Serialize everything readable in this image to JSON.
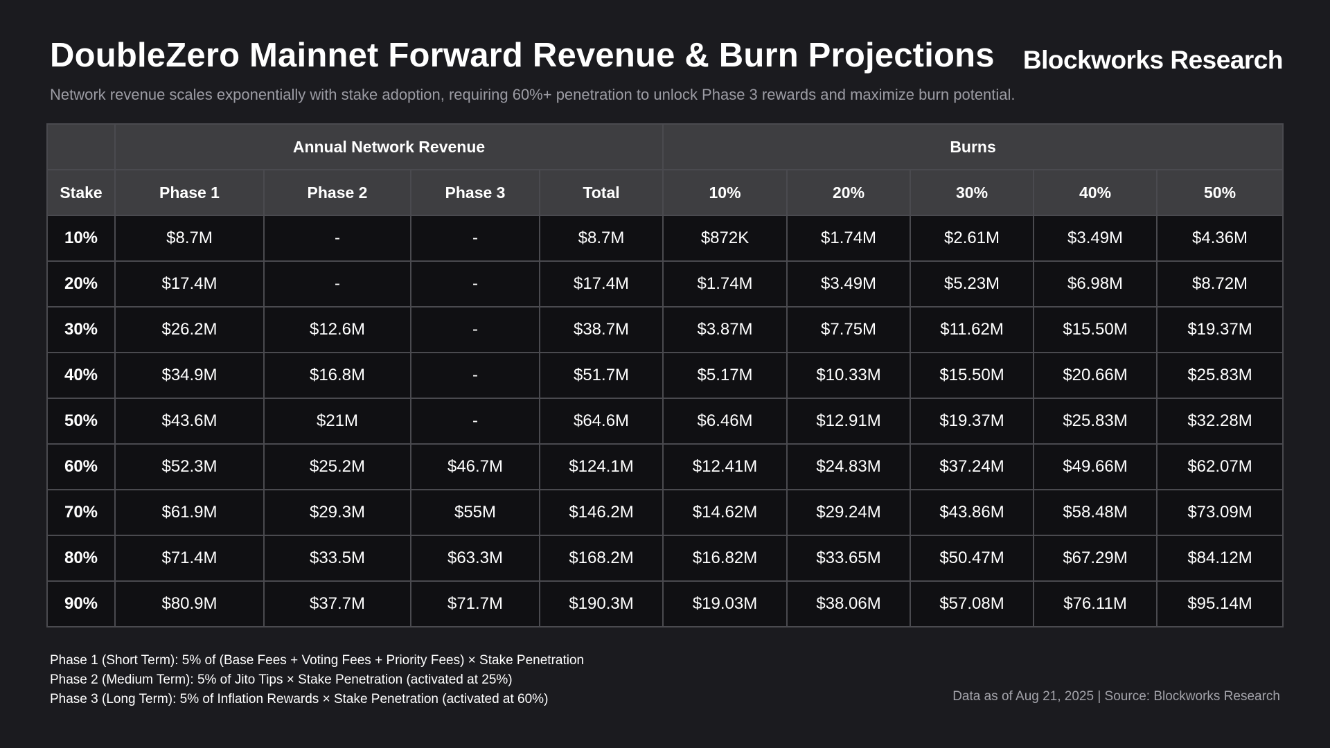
{
  "header": {
    "title": "DoubleZero Mainnet Forward Revenue & Burn Projections",
    "brand": "Blockworks Research",
    "subtitle": "Network revenue scales exponentially with stake adoption, requiring 60%+ penetration to unlock Phase 3 rewards and maximize burn potential."
  },
  "chart_data": {
    "type": "table",
    "column_groups": [
      {
        "label": "",
        "span": 1
      },
      {
        "label": "Annual Network Revenue",
        "span": 4
      },
      {
        "label": "Burns",
        "span": 5
      }
    ],
    "columns": [
      "Stake",
      "Phase 1",
      "Phase 2",
      "Phase 3",
      "Total",
      "10%",
      "20%",
      "30%",
      "40%",
      "50%"
    ],
    "rows": [
      [
        "10%",
        "$8.7M",
        "-",
        "-",
        "$8.7M",
        "$872K",
        "$1.74M",
        "$2.61M",
        "$3.49M",
        "$4.36M"
      ],
      [
        "20%",
        "$17.4M",
        "-",
        "-",
        "$17.4M",
        "$1.74M",
        "$3.49M",
        "$5.23M",
        "$6.98M",
        "$8.72M"
      ],
      [
        "30%",
        "$26.2M",
        "$12.6M",
        "-",
        "$38.7M",
        "$3.87M",
        "$7.75M",
        "$11.62M",
        "$15.50M",
        "$19.37M"
      ],
      [
        "40%",
        "$34.9M",
        "$16.8M",
        "-",
        "$51.7M",
        "$5.17M",
        "$10.33M",
        "$15.50M",
        "$20.66M",
        "$25.83M"
      ],
      [
        "50%",
        "$43.6M",
        "$21M",
        "-",
        "$64.6M",
        "$6.46M",
        "$12.91M",
        "$19.37M",
        "$25.83M",
        "$32.28M"
      ],
      [
        "60%",
        "$52.3M",
        "$25.2M",
        "$46.7M",
        "$124.1M",
        "$12.41M",
        "$24.83M",
        "$37.24M",
        "$49.66M",
        "$62.07M"
      ],
      [
        "70%",
        "$61.9M",
        "$29.3M",
        "$55M",
        "$146.2M",
        "$14.62M",
        "$29.24M",
        "$43.86M",
        "$58.48M",
        "$73.09M"
      ],
      [
        "80%",
        "$71.4M",
        "$33.5M",
        "$63.3M",
        "$168.2M",
        "$16.82M",
        "$33.65M",
        "$50.47M",
        "$67.29M",
        "$84.12M"
      ],
      [
        "90%",
        "$80.9M",
        "$37.7M",
        "$71.7M",
        "$190.3M",
        "$19.03M",
        "$38.06M",
        "$57.08M",
        "$76.11M",
        "$95.14M"
      ]
    ]
  },
  "footnotes": [
    "Phase 1 (Short Term): 5% of (Base Fees + Voting Fees + Priority Fees) × Stake Penetration",
    "Phase 2 (Medium Term): 5% of Jito Tips × Stake Penetration (activated at 25%)",
    "Phase 3 (Long Term): 5% of Inflation Rewards × Stake Penetration (activated at 60%)"
  ],
  "source": "Data as of Aug 21, 2025 | Source: Blockworks Research",
  "colors": {
    "background": "#1b1b1f",
    "header_cell": "#3e3e41",
    "body_cell": "#101013",
    "border": "#4a4a4f",
    "subtitle_text": "#9c9ca4"
  }
}
